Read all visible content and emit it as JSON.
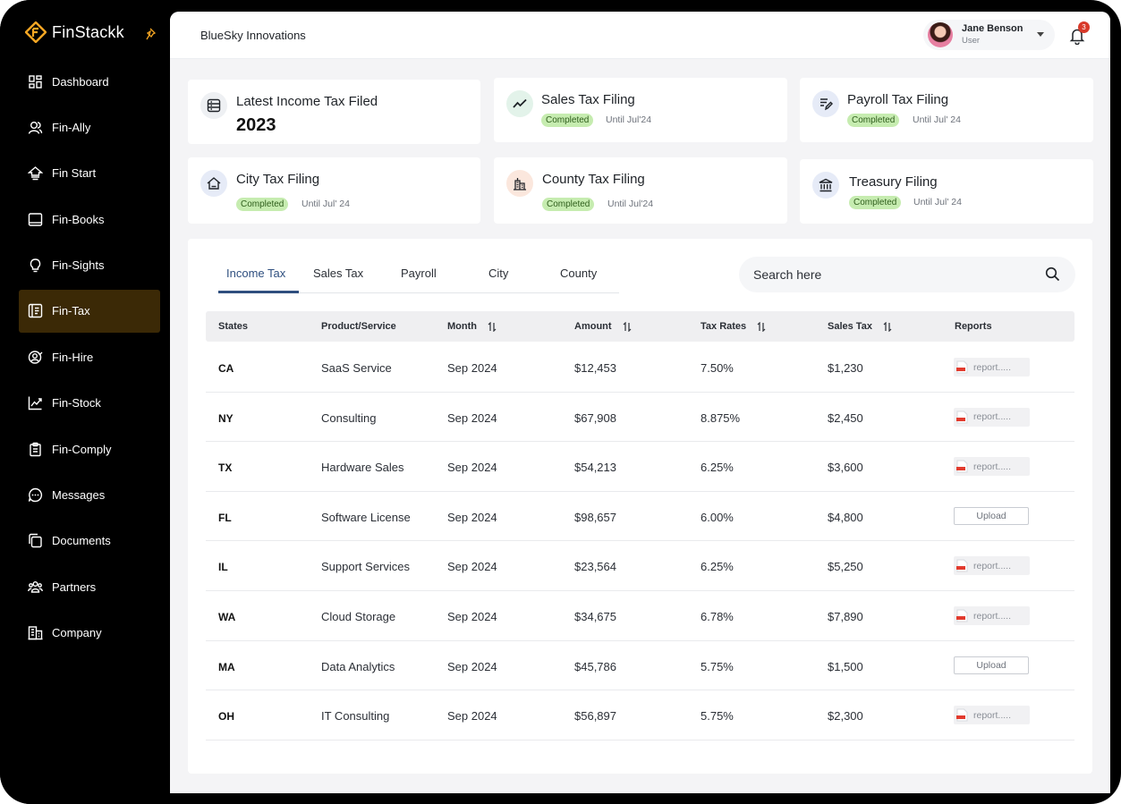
{
  "brand": {
    "name": "FinStackk",
    "logo_icon": "finstackk-logo-icon",
    "accent": "#f5a623"
  },
  "sidebar": {
    "items": [
      {
        "label": "Dashboard",
        "icon": "dashboard-icon"
      },
      {
        "label": "Fin-Ally",
        "icon": "users-icon"
      },
      {
        "label": "Fin Start",
        "icon": "home-start-icon"
      },
      {
        "label": "Fin-Books",
        "icon": "book-icon"
      },
      {
        "label": "Fin-Sights",
        "icon": "lightbulb-icon"
      },
      {
        "label": "Fin-Tax",
        "icon": "tax-document-icon",
        "active": true
      },
      {
        "label": "Fin-Hire",
        "icon": "hire-icon"
      },
      {
        "label": "Fin-Stock",
        "icon": "stock-chart-icon"
      },
      {
        "label": "Fin-Comply",
        "icon": "clipboard-icon"
      },
      {
        "label": "Messages",
        "icon": "chat-icon"
      },
      {
        "label": "Documents",
        "icon": "documents-icon"
      },
      {
        "label": "Partners",
        "icon": "partners-icon"
      },
      {
        "label": "Company",
        "icon": "building-icon"
      }
    ]
  },
  "header": {
    "company": "BlueSky Innovations",
    "user": {
      "name": "Jane Benson",
      "role": "User"
    },
    "notifications": "3"
  },
  "cards": {
    "income": {
      "title": "Latest Income Tax Filed",
      "year": "2023"
    },
    "sales": {
      "title": "Sales Tax Filing",
      "status": "Completed",
      "until": "Until Jul'24"
    },
    "payroll": {
      "title": "Payroll Tax Filing",
      "status": "Completed",
      "until": "Until Jul' 24"
    },
    "city": {
      "title": "City Tax Filing",
      "status": "Completed",
      "until": "Until Jul' 24"
    },
    "county": {
      "title": "County Tax Filing",
      "status": "Completed",
      "until": "Until Jul'24"
    },
    "treasury": {
      "title": "Treasury Filing",
      "status": "Completed",
      "until": "Until Jul' 24"
    }
  },
  "tabs": [
    "Income Tax",
    "Sales Tax",
    "Payroll",
    "City",
    "County"
  ],
  "search": {
    "placeholder": "Search here"
  },
  "table": {
    "headers": [
      "States",
      "Product/Service",
      "Month",
      "Amount",
      "Tax Rates",
      "Sales Tax",
      "Reports"
    ],
    "rows": [
      {
        "state": "CA",
        "product": "SaaS Service",
        "month": "Sep 2024",
        "amount": "$12,453",
        "rate": "7.50%",
        "sales_tax": "$1,230",
        "report": "report....."
      },
      {
        "state": "NY",
        "product": "Consulting",
        "month": "Sep 2024",
        "amount": "$67,908",
        "rate": "8.875%",
        "sales_tax": "$2,450",
        "report": "report....."
      },
      {
        "state": "TX",
        "product": "Hardware Sales",
        "month": "Sep 2024",
        "amount": "$54,213",
        "rate": "6.25%",
        "sales_tax": "$3,600",
        "report": "report....."
      },
      {
        "state": "FL",
        "product": "Software License",
        "month": "Sep 2024",
        "amount": "$98,657",
        "rate": "6.00%",
        "sales_tax": "$4,800",
        "upload": "Upload"
      },
      {
        "state": "IL",
        "product": "Support Services",
        "month": "Sep 2024",
        "amount": "$23,564",
        "rate": "6.25%",
        "sales_tax": "$5,250",
        "report": "report....."
      },
      {
        "state": "WA",
        "product": "Cloud Storage",
        "month": "Sep 2024",
        "amount": "$34,675",
        "rate": "6.78%",
        "sales_tax": "$7,890",
        "report": "report....."
      },
      {
        "state": "MA",
        "product": "Data Analytics",
        "month": "Sep 2024",
        "amount": "$45,786",
        "rate": "5.75%",
        "sales_tax": "$1,500",
        "upload": "Upload"
      },
      {
        "state": "OH",
        "product": "IT Consulting",
        "month": "Sep 2024",
        "amount": "$56,897",
        "rate": "5.75%",
        "sales_tax": "$2,300",
        "report": "report....."
      }
    ]
  }
}
